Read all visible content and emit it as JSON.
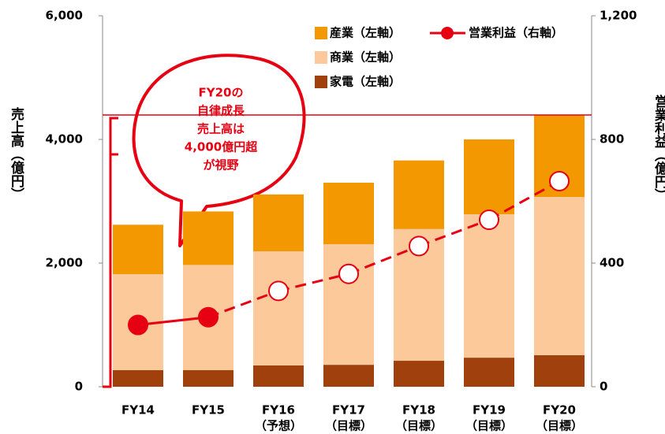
{
  "chart_data": {
    "type": "bar",
    "categories": [
      [
        "FY14"
      ],
      [
        "FY15"
      ],
      [
        "FY16",
        "（予想）"
      ],
      [
        "FY17",
        "（目標）"
      ],
      [
        "FY18",
        "（目標）"
      ],
      [
        "FY19",
        "（目標）"
      ],
      [
        "FY20",
        "（目標）"
      ]
    ],
    "series": [
      {
        "name": "産業（左軸）",
        "color": "#f39800",
        "values": [
          800,
          865,
          920,
          995,
          1110,
          1210,
          1325
        ]
      },
      {
        "name": "商業（左軸）",
        "color": "#fbc99a",
        "values": [
          1550,
          1700,
          1845,
          1950,
          2130,
          2320,
          2560
        ]
      },
      {
        "name": "家電（左軸）",
        "color": "#a0400c",
        "values": [
          270,
          270,
          345,
          355,
          420,
          470,
          510
        ]
      },
      {
        "name": "営業利益（右軸）",
        "color": "#e60012",
        "type": "line",
        "axis": "y2",
        "values": [
          200,
          225,
          310,
          365,
          455,
          540,
          665
        ]
      }
    ],
    "ylabel": "売上高（億円）",
    "y2label": "営業利益（億円）",
    "ylim": [
      0,
      6000
    ],
    "yticks": [
      0,
      {
        "value": 2000,
        "label": "2,000"
      },
      {
        "value": 4000,
        "label": "4,000"
      },
      {
        "value": 6000,
        "label": "6,000"
      }
    ],
    "y2lim": [
      0,
      1200
    ],
    "y2ticks": [
      0,
      400,
      800,
      {
        "value": 1200,
        "label": "1,200"
      }
    ],
    "annotation": [
      "FY20の",
      "自律成長",
      "売上高は",
      "4,000億円超",
      "が視野"
    ]
  }
}
